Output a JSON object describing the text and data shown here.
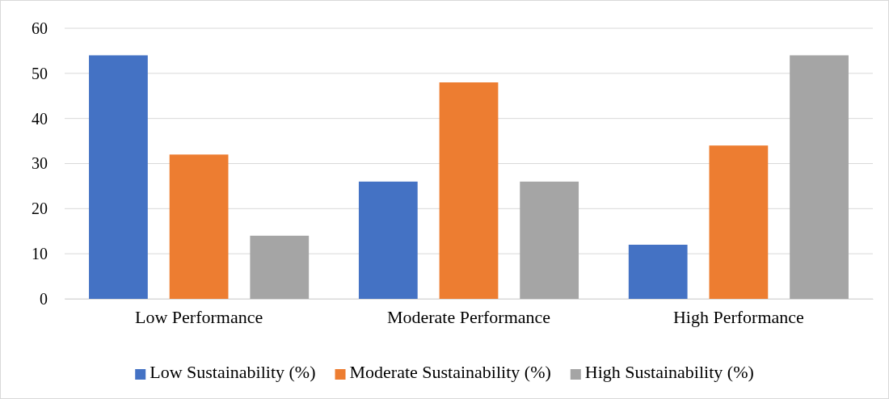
{
  "chart_data": {
    "type": "bar",
    "categories": [
      "Low Performance",
      "Moderate Performance",
      "High Performance"
    ],
    "series": [
      {
        "name": "Low Sustainability (%)",
        "color": "#4472c4",
        "values": [
          54,
          26,
          12
        ]
      },
      {
        "name": "Moderate Sustainability (%)",
        "color": "#ed7d31",
        "values": [
          32,
          48,
          34
        ]
      },
      {
        "name": "High Sustainability (%)",
        "color": "#a5a5a5",
        "values": [
          14,
          26,
          54
        ]
      }
    ],
    "ylim": [
      0,
      60
    ],
    "yticks": [
      0,
      10,
      20,
      30,
      40,
      50,
      60
    ],
    "grid": "y",
    "legend": "bottom"
  }
}
